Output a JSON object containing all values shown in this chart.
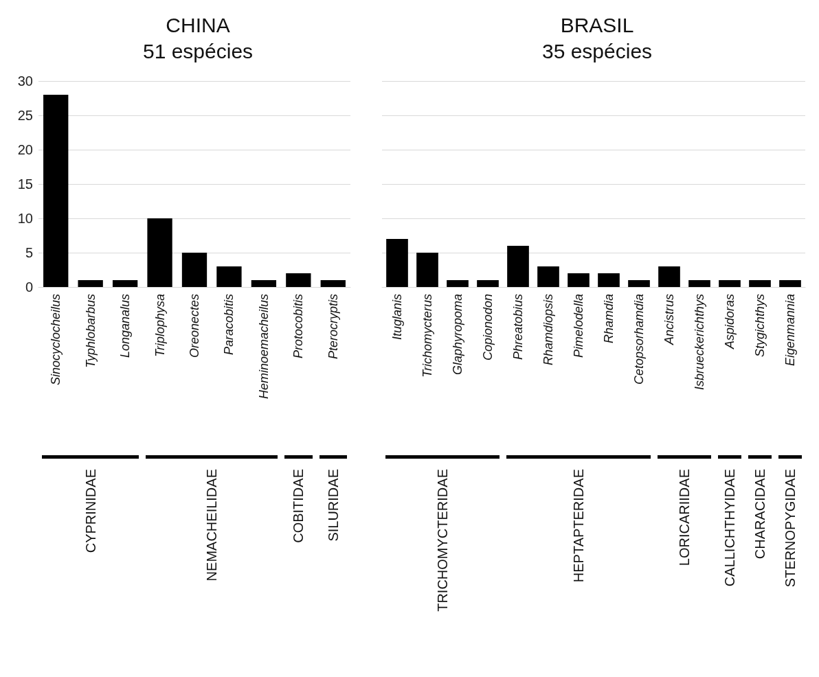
{
  "chart_data": [
    {
      "type": "bar",
      "title": "CHINA",
      "subtitle": "51 espécies",
      "categories": [
        "Sinocyclocheilus",
        "Typhlobarbus",
        "Longanalus",
        "Triplophysa",
        "Oreonectes",
        "Paracobitis",
        "Heminoemacheilus",
        "Protocobitis",
        "Pterocryptis"
      ],
      "values": [
        28,
        1,
        1,
        10,
        5,
        3,
        1,
        2,
        1
      ],
      "color": "#000000",
      "ylim": [
        0,
        30
      ],
      "yticks": [
        0,
        5,
        10,
        15,
        20,
        25,
        30
      ],
      "grid": "y",
      "annotations": [
        "CYPRINIDAE",
        "NEMACHEILIDAE",
        "COBITIDAE",
        "SILURIDAE"
      ]
    },
    {
      "type": "bar",
      "title": "BRASIL",
      "subtitle": "35 espécies",
      "categories": [
        "Ituglanis",
        "Trichomycterus",
        "Glaphyropoma",
        "Copionodon",
        "Phreatobius",
        "Rhamdiopsis",
        "Pimelodella",
        "Rhamdia",
        "Cetopsorhamdia",
        "Ancistrus",
        "Isbrueckerichthys",
        "Aspidoras",
        "Stygichthys",
        "Eigenmannia"
      ],
      "values": [
        7,
        5,
        1,
        1,
        6,
        3,
        2,
        2,
        1,
        3,
        1,
        1,
        1,
        1
      ],
      "color": "#000000",
      "ylim": [
        0,
        30
      ],
      "yticks": [
        0,
        5,
        10,
        15,
        20,
        25,
        30
      ],
      "grid": "y",
      "tick_labels": "x",
      "annotations": [
        "TRICHOMYCTERIDAE",
        "HEPTAPTERIDAE",
        "LORICARIIDAE",
        "CALLICHTHYIDAE",
        "CHARACIDAE",
        "STERNOPYGIDAE"
      ]
    }
  ]
}
